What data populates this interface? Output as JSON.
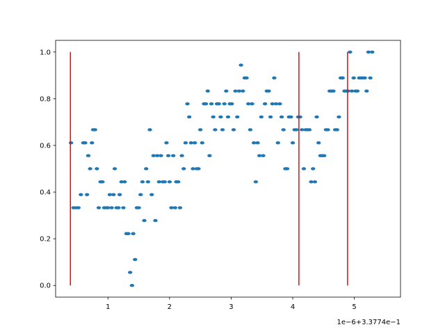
{
  "chart_data": {
    "type": "scatter",
    "x_offset_label": "1e−6+3.3774e−1",
    "xlim": [
      0.15,
      5.75
    ],
    "ylim": [
      -0.05,
      1.05
    ],
    "x_ticks": [
      1,
      2,
      3,
      4,
      5
    ],
    "x_tick_labels": [
      "1",
      "2",
      "3",
      "4",
      "5"
    ],
    "y_ticks": [
      0.0,
      0.2,
      0.4,
      0.6,
      0.8,
      1.0
    ],
    "y_tick_labels": [
      "0.0",
      "0.2",
      "0.4",
      "0.6",
      "0.8",
      "1.0"
    ],
    "grid": false,
    "colors": {
      "points": "#1f77b4",
      "vlines": "#ff0000",
      "axes": "#000000"
    },
    "vlines": [
      {
        "x": 0.39,
        "ymin": 0.0,
        "ymax": 1.0
      },
      {
        "x": 4.1,
        "ymin": 0.0,
        "ymax": 1.0
      },
      {
        "x": 4.89,
        "ymin": 0.0,
        "ymax": 1.0
      }
    ],
    "points": [
      [
        0.4,
        0.611
      ],
      [
        0.44,
        0.333
      ],
      [
        0.48,
        0.333
      ],
      [
        0.52,
        0.333
      ],
      [
        0.56,
        0.389
      ],
      [
        0.6,
        0.611
      ],
      [
        0.63,
        0.611
      ],
      [
        0.66,
        0.389
      ],
      [
        0.68,
        0.556
      ],
      [
        0.71,
        0.5
      ],
      [
        0.74,
        0.611
      ],
      [
        0.76,
        0.667
      ],
      [
        0.79,
        0.667
      ],
      [
        0.82,
        0.5
      ],
      [
        0.85,
        0.333
      ],
      [
        0.88,
        0.444
      ],
      [
        0.91,
        0.444
      ],
      [
        0.94,
        0.333
      ],
      [
        0.97,
        0.333
      ],
      [
        1.0,
        0.333
      ],
      [
        1.03,
        0.389
      ],
      [
        1.06,
        0.333
      ],
      [
        1.09,
        0.389
      ],
      [
        1.11,
        0.5
      ],
      [
        1.14,
        0.333
      ],
      [
        1.17,
        0.333
      ],
      [
        1.19,
        0.389
      ],
      [
        1.22,
        0.444
      ],
      [
        1.25,
        0.333
      ],
      [
        1.27,
        0.444
      ],
      [
        1.3,
        0.222
      ],
      [
        1.33,
        0.222
      ],
      [
        1.36,
        0.056
      ],
      [
        1.39,
        0.0
      ],
      [
        1.41,
        0.222
      ],
      [
        1.44,
        0.111
      ],
      [
        1.47,
        0.333
      ],
      [
        1.5,
        0.333
      ],
      [
        1.53,
        0.389
      ],
      [
        1.56,
        0.444
      ],
      [
        1.59,
        0.278
      ],
      [
        1.62,
        0.5
      ],
      [
        1.65,
        0.444
      ],
      [
        1.68,
        0.667
      ],
      [
        1.71,
        0.389
      ],
      [
        1.74,
        0.556
      ],
      [
        1.77,
        0.278
      ],
      [
        1.8,
        0.556
      ],
      [
        1.83,
        0.444
      ],
      [
        1.86,
        0.556
      ],
      [
        1.89,
        0.444
      ],
      [
        1.92,
        0.444
      ],
      [
        1.95,
        0.611
      ],
      [
        1.98,
        0.556
      ],
      [
        2.0,
        0.444
      ],
      [
        2.03,
        0.333
      ],
      [
        2.06,
        0.556
      ],
      [
        2.09,
        0.333
      ],
      [
        2.11,
        0.444
      ],
      [
        2.14,
        0.444
      ],
      [
        2.17,
        0.333
      ],
      [
        2.2,
        0.556
      ],
      [
        2.23,
        0.5
      ],
      [
        2.26,
        0.611
      ],
      [
        2.29,
        0.778
      ],
      [
        2.32,
        0.722
      ],
      [
        2.35,
        0.611
      ],
      [
        2.38,
        0.5
      ],
      [
        2.41,
        0.611
      ],
      [
        2.44,
        0.5
      ],
      [
        2.47,
        0.5
      ],
      [
        2.5,
        0.667
      ],
      [
        2.53,
        0.611
      ],
      [
        2.56,
        0.778
      ],
      [
        2.59,
        0.778
      ],
      [
        2.62,
        0.833
      ],
      [
        2.65,
        0.556
      ],
      [
        2.68,
        0.778
      ],
      [
        2.71,
        0.722
      ],
      [
        2.74,
        0.667
      ],
      [
        2.77,
        0.778
      ],
      [
        2.8,
        0.778
      ],
      [
        2.83,
        0.722
      ],
      [
        2.86,
        0.667
      ],
      [
        2.89,
        0.778
      ],
      [
        2.92,
        0.833
      ],
      [
        2.95,
        0.722
      ],
      [
        2.98,
        0.778
      ],
      [
        3.01,
        0.778
      ],
      [
        3.04,
        0.667
      ],
      [
        3.07,
        0.833
      ],
      [
        3.1,
        0.722
      ],
      [
        3.13,
        0.833
      ],
      [
        3.16,
        0.944
      ],
      [
        3.19,
        0.833
      ],
      [
        3.22,
        0.889
      ],
      [
        3.25,
        0.889
      ],
      [
        3.28,
        0.778
      ],
      [
        3.31,
        0.667
      ],
      [
        3.34,
        0.778
      ],
      [
        3.37,
        0.611
      ],
      [
        3.4,
        0.444
      ],
      [
        3.43,
        0.611
      ],
      [
        3.46,
        0.556
      ],
      [
        3.49,
        0.722
      ],
      [
        3.52,
        0.556
      ],
      [
        3.55,
        0.778
      ],
      [
        3.58,
        0.833
      ],
      [
        3.61,
        0.833
      ],
      [
        3.64,
        0.722
      ],
      [
        3.67,
        0.778
      ],
      [
        3.7,
        0.889
      ],
      [
        3.73,
        0.778
      ],
      [
        3.76,
        0.611
      ],
      [
        3.79,
        0.778
      ],
      [
        3.82,
        0.722
      ],
      [
        3.85,
        0.667
      ],
      [
        3.88,
        0.5
      ],
      [
        3.91,
        0.5
      ],
      [
        3.94,
        0.722
      ],
      [
        3.97,
        0.722
      ],
      [
        4.0,
        0.611
      ],
      [
        4.03,
        0.667
      ],
      [
        4.06,
        0.667
      ],
      [
        4.09,
        0.722
      ],
      [
        4.12,
        0.722
      ],
      [
        4.15,
        0.667
      ],
      [
        4.18,
        0.5
      ],
      [
        4.21,
        0.667
      ],
      [
        4.24,
        0.667
      ],
      [
        4.27,
        0.667
      ],
      [
        4.3,
        0.444
      ],
      [
        4.33,
        0.5
      ],
      [
        4.36,
        0.444
      ],
      [
        4.39,
        0.722
      ],
      [
        4.42,
        0.611
      ],
      [
        4.45,
        0.556
      ],
      [
        4.48,
        0.556
      ],
      [
        4.51,
        0.556
      ],
      [
        4.54,
        0.667
      ],
      [
        4.57,
        0.667
      ],
      [
        4.6,
        0.833
      ],
      [
        4.63,
        0.833
      ],
      [
        4.66,
        0.833
      ],
      [
        4.69,
        0.667
      ],
      [
        4.72,
        0.667
      ],
      [
        4.75,
        0.722
      ],
      [
        4.78,
        0.889
      ],
      [
        4.81,
        0.889
      ],
      [
        4.84,
        0.833
      ],
      [
        4.87,
        0.833
      ],
      [
        4.9,
        0.833
      ],
      [
        4.93,
        1.0
      ],
      [
        4.96,
        0.833
      ],
      [
        4.99,
        0.889
      ],
      [
        5.02,
        0.833
      ],
      [
        5.05,
        0.833
      ],
      [
        5.08,
        0.889
      ],
      [
        5.11,
        0.889
      ],
      [
        5.14,
        0.889
      ],
      [
        5.17,
        0.889
      ],
      [
        5.2,
        0.833
      ],
      [
        5.23,
        1.0
      ],
      [
        5.26,
        0.889
      ],
      [
        5.29,
        1.0
      ]
    ]
  }
}
